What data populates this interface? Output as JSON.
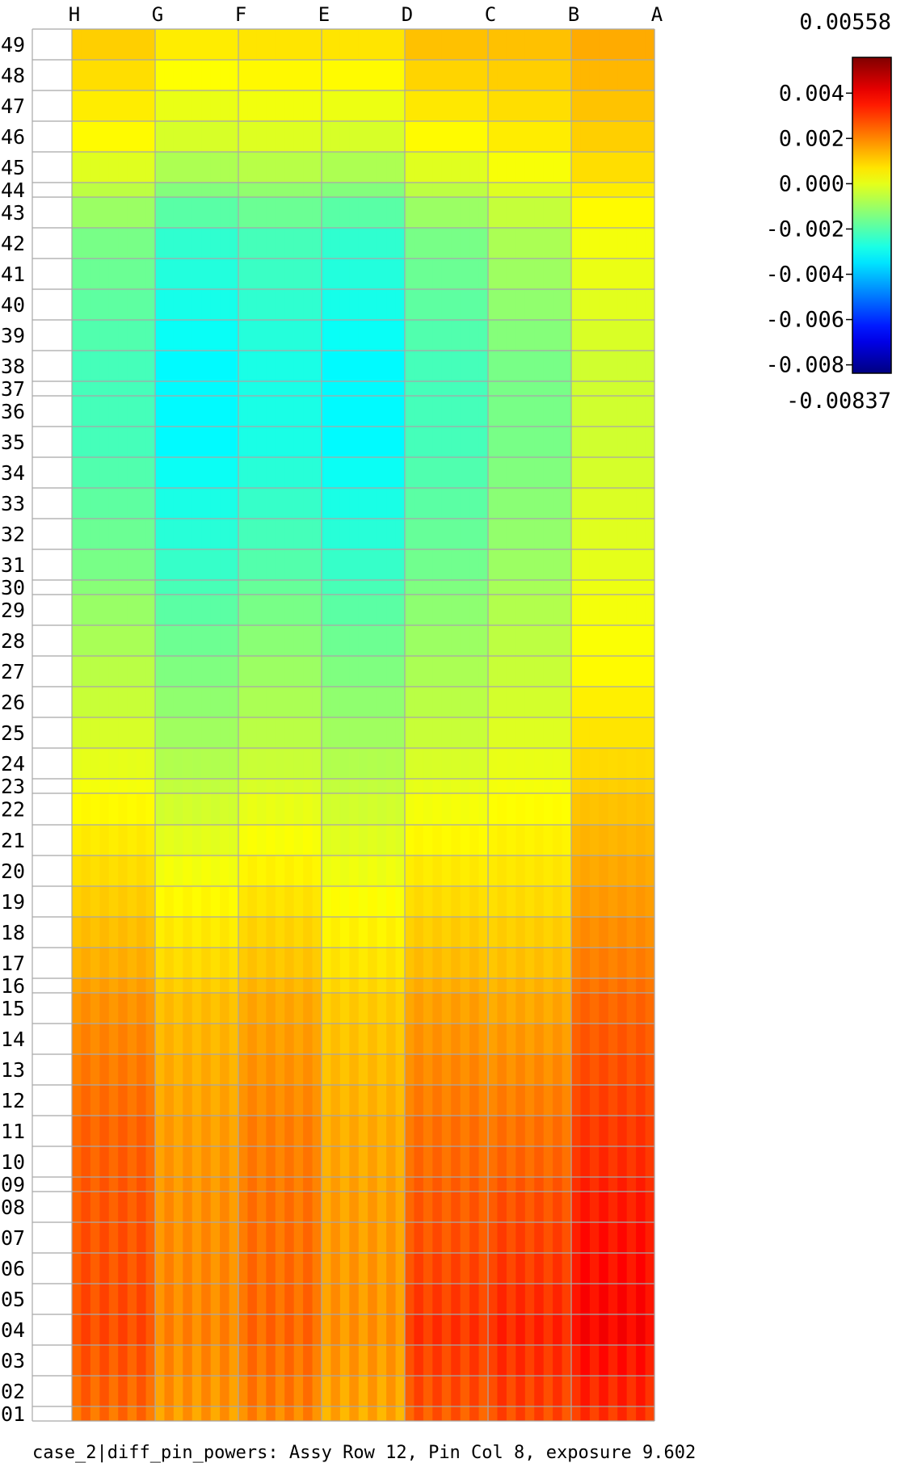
{
  "chart_data": {
    "type": "heatmap",
    "title": "",
    "xlabel": "",
    "ylabel": "",
    "columns": [
      "H",
      "G",
      "F",
      "E",
      "D",
      "C",
      "B",
      "A"
    ],
    "rows": [
      "49",
      "48",
      "47",
      "46",
      "45",
      "44",
      "43",
      "42",
      "41",
      "40",
      "39",
      "38",
      "37",
      "36",
      "35",
      "34",
      "33",
      "32",
      "31",
      "30",
      "29",
      "28",
      "27",
      "26",
      "25",
      "24",
      "23",
      "22",
      "21",
      "20",
      "19",
      "18",
      "17",
      "16",
      "15",
      "14",
      "13",
      "12",
      "11",
      "10",
      "09",
      "08",
      "07",
      "06",
      "05",
      "04",
      "03",
      "02",
      "01"
    ],
    "row_boundaries": [
      0,
      38,
      76,
      114,
      152,
      190,
      208,
      246,
      284,
      322,
      360,
      398,
      436,
      454,
      492,
      530,
      568,
      606,
      644,
      682,
      700,
      738,
      776,
      814,
      852,
      890,
      928,
      946,
      985,
      1023,
      1061,
      1099,
      1137,
      1175,
      1193,
      1231,
      1269,
      1307,
      1345,
      1383,
      1421,
      1439,
      1477,
      1515,
      1553,
      1591,
      1629,
      1667,
      1705,
      1723
    ],
    "colorbar": {
      "max_label": "0.00558",
      "min_label": "-0.00837",
      "vmin": -0.00837,
      "vmax": 0.00558,
      "ticks": [
        0.004,
        0.002,
        0.0,
        -0.002,
        -0.004,
        -0.006,
        -0.008
      ],
      "tick_labels": [
        "0.004",
        "0.002",
        "0.000",
        "-0.002",
        "-0.004",
        "-0.006",
        "-0.008"
      ],
      "colormap": "jet"
    },
    "value_profile": {
      "description_axis": "sample values per row for columns H..B (A empty)",
      "anchor_rows": [
        {
          "row": "49",
          "values": [
            0.001,
            0.0006,
            0.0007,
            0.0007,
            0.0012,
            0.0012,
            0.0015
          ]
        },
        {
          "row": "46",
          "values": [
            0.0004,
            -0.0002,
            -0.0001,
            -0.0002,
            0.0004,
            0.0006,
            0.001
          ]
        },
        {
          "row": "42",
          "values": [
            -0.0015,
            -0.0025,
            -0.0022,
            -0.0025,
            -0.0015,
            -0.0008,
            0.0002
          ]
        },
        {
          "row": "38",
          "values": [
            -0.0022,
            -0.0032,
            -0.0028,
            -0.0032,
            -0.0022,
            -0.0015,
            -0.0003
          ]
        },
        {
          "row": "35",
          "values": [
            -0.0022,
            -0.0032,
            -0.0028,
            -0.0032,
            -0.0022,
            -0.0015,
            -0.0003
          ]
        },
        {
          "row": "31",
          "values": [
            -0.0015,
            -0.0024,
            -0.002,
            -0.0024,
            -0.0016,
            -0.001,
            0.0
          ]
        },
        {
          "row": "27",
          "values": [
            -0.0006,
            -0.0014,
            -0.001,
            -0.0014,
            -0.0008,
            -0.0004,
            0.0004
          ]
        },
        {
          "row": "23",
          "values": [
            0.0002,
            -0.0005,
            -0.0002,
            -0.0005,
            0.0,
            0.0002,
            0.001
          ]
        },
        {
          "row": "19",
          "values": [
            0.001,
            0.0004,
            0.0007,
            0.0003,
            0.0008,
            0.0008,
            0.0017
          ]
        },
        {
          "row": "15",
          "values": [
            0.0018,
            0.0012,
            0.0015,
            0.001,
            0.0016,
            0.0015,
            0.0024
          ]
        },
        {
          "row": "11",
          "values": [
            0.0024,
            0.0016,
            0.002,
            0.0014,
            0.0022,
            0.0022,
            0.003
          ]
        },
        {
          "row": "07",
          "values": [
            0.0026,
            0.0018,
            0.0022,
            0.0016,
            0.0026,
            0.0028,
            0.0035
          ]
        },
        {
          "row": "04",
          "values": [
            0.0027,
            0.0019,
            0.0023,
            0.0017,
            0.003,
            0.0032,
            0.0037
          ]
        },
        {
          "row": "01",
          "values": [
            0.0022,
            0.0016,
            0.0019,
            0.0014,
            0.0025,
            0.0027,
            0.003
          ]
        }
      ]
    }
  },
  "caption": "case_2|diff_pin_powers: Assy Row 12, Pin Col 8, exposure 9.602"
}
